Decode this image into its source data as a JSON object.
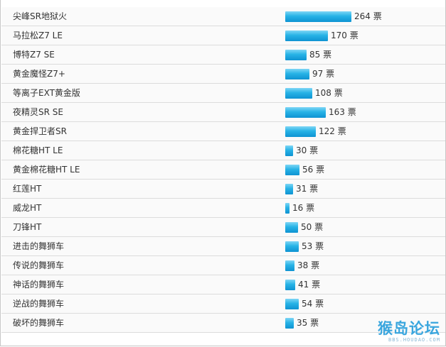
{
  "chart_data": {
    "type": "bar",
    "unit": "票",
    "categories": [
      "尖峰SR地狱火",
      "马拉松Z7 LE",
      "博特Z7 SE",
      "黄金魔怪Z7+",
      "等离子EXT黄金版",
      "夜精灵SR SE",
      "黄金捍卫者SR",
      "棉花糖HT LE",
      "黄金棉花糖HT LE",
      "红莲HT",
      "威龙HT",
      "刀锋HT",
      "进击的舞狮车",
      "传说的舞狮车",
      "神话的舞狮车",
      "逆战的舞狮车",
      "破坏的舞狮车"
    ],
    "values": [
      264,
      170,
      85,
      97,
      108,
      163,
      122,
      30,
      56,
      31,
      16,
      50,
      53,
      38,
      41,
      54,
      35
    ],
    "value_labels": [
      "264 票",
      "170 票",
      "85 票",
      "97 票",
      "108 票",
      "163 票",
      "122 票",
      "30 票",
      "56 票",
      "31 票",
      "16 票",
      "50 票",
      "53 票",
      "38 票",
      "41 票",
      "54 票",
      "35 票"
    ]
  },
  "watermark": {
    "logo_text": "猴岛论坛",
    "url_text": "BBS.HOUDAO.COM"
  },
  "colors": {
    "bar_light": "#7fd6f5",
    "bar_dark": "#0e93d2",
    "row_bg": "#fafafa",
    "row_border": "#dcdcdc"
  }
}
